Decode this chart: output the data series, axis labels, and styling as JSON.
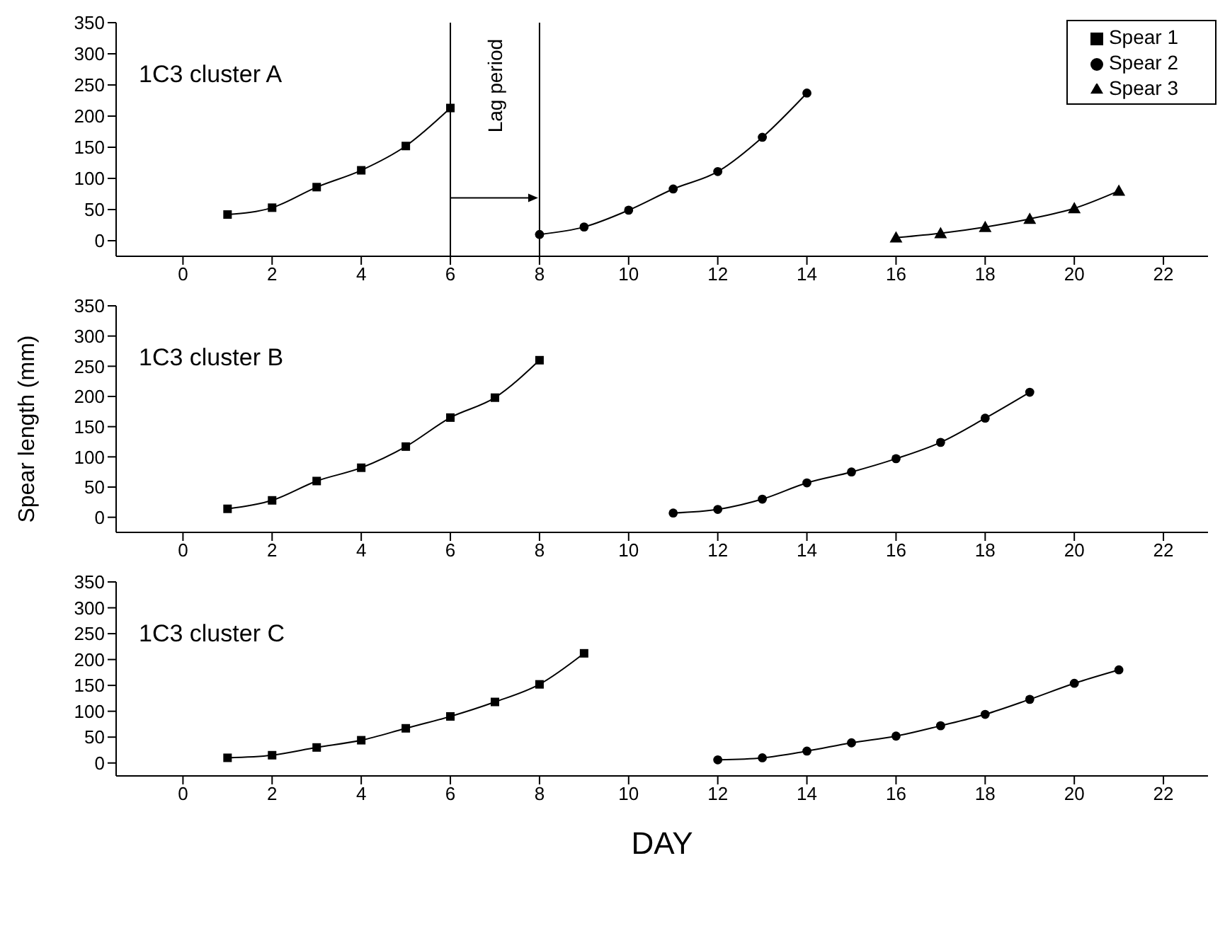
{
  "chart_data": [
    {
      "type": "line",
      "title": "1C3 cluster A",
      "xlim": [
        -1.5,
        23
      ],
      "xticks": [
        0,
        2,
        4,
        6,
        8,
        10,
        12,
        14,
        16,
        18,
        20,
        22
      ],
      "ylim": [
        -25,
        350
      ],
      "yticks": [
        0,
        50,
        100,
        150,
        200,
        250,
        300,
        350
      ],
      "legend": "top right",
      "ref_lines": [
        {
          "axis": "x",
          "value": 6
        },
        {
          "axis": "x",
          "value": 8
        }
      ],
      "annotations": [
        "Lag period"
      ],
      "series": [
        {
          "name": "Spear 1",
          "color": "#000000",
          "marker": "square",
          "x": [
            1,
            2,
            3,
            4,
            5,
            6
          ],
          "values": [
            42,
            53,
            86,
            113,
            152,
            213
          ]
        },
        {
          "name": "Spear 2",
          "color": "#000000",
          "marker": "circle",
          "x": [
            8,
            9,
            10,
            11,
            12,
            13,
            14
          ],
          "values": [
            10,
            22,
            49,
            83,
            111,
            166,
            237
          ]
        },
        {
          "name": "Spear 3",
          "color": "#000000",
          "marker": "triangle",
          "x": [
            16,
            17,
            18,
            19,
            20,
            21
          ],
          "values": [
            5,
            12,
            22,
            35,
            52,
            80
          ]
        }
      ]
    },
    {
      "type": "line",
      "title": "1C3 cluster B",
      "ylabel": "Spear length (mm)",
      "xlim": [
        -1.5,
        23
      ],
      "xticks": [
        0,
        2,
        4,
        6,
        8,
        10,
        12,
        14,
        16,
        18,
        20,
        22
      ],
      "ylim": [
        -25,
        350
      ],
      "yticks": [
        0,
        50,
        100,
        150,
        200,
        250,
        300,
        350
      ],
      "series": [
        {
          "color": "#000000",
          "marker": "square",
          "x": [
            1,
            2,
            3,
            4,
            5,
            6,
            7,
            8
          ],
          "values": [
            14,
            28,
            60,
            82,
            117,
            165,
            198,
            260
          ]
        },
        {
          "color": "#000000",
          "marker": "circle",
          "x": [
            11,
            12,
            13,
            14,
            15,
            16,
            17,
            18,
            19
          ],
          "values": [
            7,
            13,
            30,
            57,
            75,
            97,
            124,
            164,
            207
          ]
        }
      ]
    },
    {
      "type": "line",
      "title": "1C3 cluster C",
      "xlabel": "DAY",
      "xlim": [
        -1.5,
        23
      ],
      "xticks": [
        0,
        2,
        4,
        6,
        8,
        10,
        12,
        14,
        16,
        18,
        20,
        22
      ],
      "ylim": [
        -25,
        350
      ],
      "yticks": [
        0,
        50,
        100,
        150,
        200,
        250,
        300,
        350
      ],
      "series": [
        {
          "color": "#000000",
          "marker": "square",
          "x": [
            1,
            2,
            3,
            4,
            5,
            6,
            7,
            8,
            9
          ],
          "values": [
            10,
            15,
            30,
            44,
            67,
            90,
            118,
            152,
            212
          ]
        },
        {
          "color": "#000000",
          "marker": "circle",
          "x": [
            12,
            13,
            14,
            15,
            16,
            17,
            18,
            19,
            20,
            21
          ],
          "values": [
            6,
            10,
            23,
            39,
            52,
            72,
            94,
            123,
            154,
            180
          ]
        }
      ]
    }
  ]
}
